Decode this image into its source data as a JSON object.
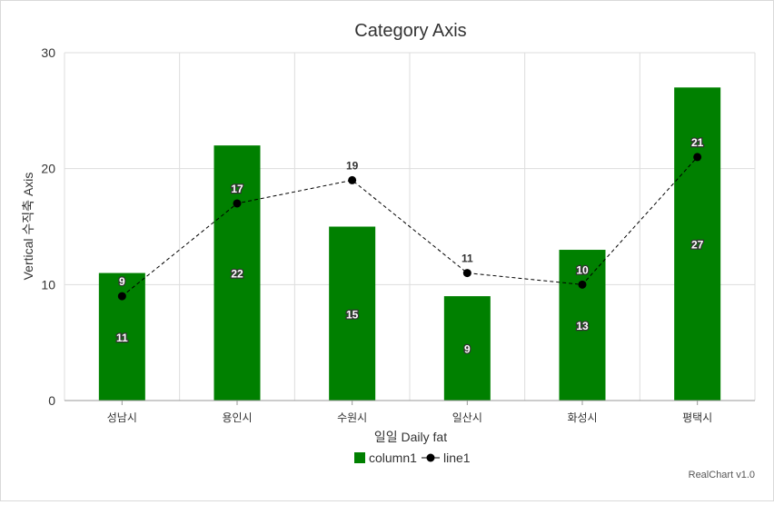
{
  "chart_data": {
    "type": "bar",
    "title": "Category Axis",
    "xlabel": "일일 Daily fat",
    "ylabel": "Vertical 수직축 Axis",
    "categories": [
      "성남시",
      "용인시",
      "수원시",
      "일산시",
      "화성시",
      "평택시"
    ],
    "series": [
      {
        "name": "column1",
        "type": "bar",
        "values": [
          11,
          22,
          15,
          9,
          13,
          27
        ]
      },
      {
        "name": "line1",
        "type": "line",
        "values": [
          9,
          17,
          19,
          11,
          10,
          21
        ]
      }
    ],
    "ylim": [
      0,
      30
    ],
    "yticks": [
      0,
      10,
      20,
      30
    ],
    "grid": true,
    "legend": "bottom-center",
    "colors": {
      "column1": "#008000",
      "line1": "#000000"
    }
  },
  "credit": "RealChart v1.0"
}
